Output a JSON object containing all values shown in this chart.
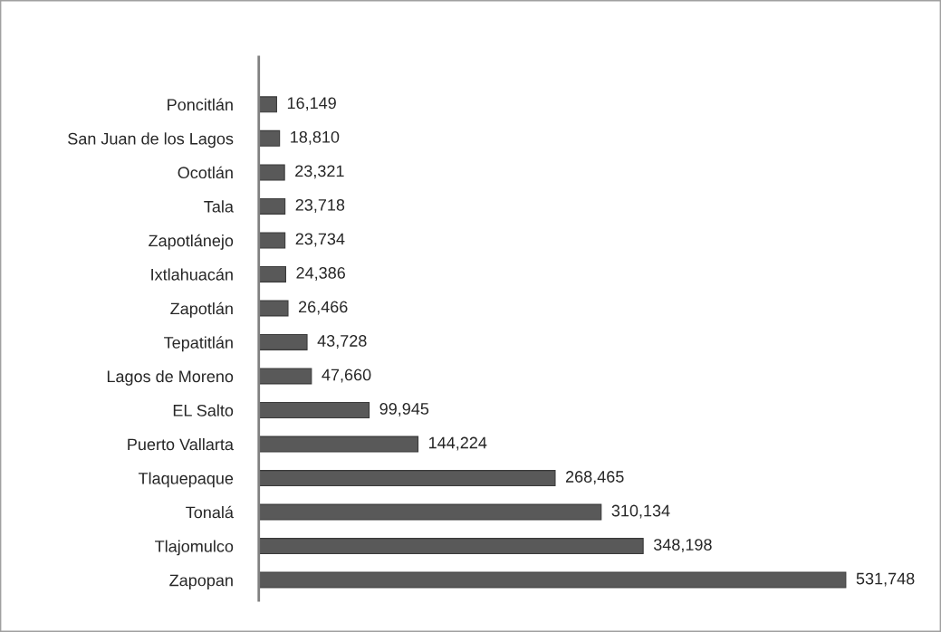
{
  "chart_data": {
    "type": "bar",
    "orientation": "horizontal",
    "color": "#595959",
    "categories": [
      "Poncitlán",
      "San Juan de los Lagos",
      "Ocotlán",
      "Tala",
      "Zapotlánejo",
      "Ixtlahuacán",
      "Zapotlán",
      "Tepatitlán",
      "Lagos de Moreno",
      "EL Salto",
      "Puerto Vallarta",
      "Tlaquepaque",
      "Tonalá",
      "Tlajomulco",
      "Zapopan"
    ],
    "values": [
      16149,
      18810,
      23321,
      23718,
      23734,
      24386,
      26466,
      43728,
      47660,
      99945,
      144224,
      268465,
      310134,
      348198,
      531748
    ],
    "value_labels": [
      "16,149",
      "18,810",
      "23,321",
      "23,718",
      "23,734",
      "24,386",
      "26,466",
      "43,728",
      "47,660",
      "99,945",
      "144,224",
      "268,465",
      "310,134",
      "348,198",
      "531,748"
    ],
    "grid": false,
    "legend": false
  }
}
